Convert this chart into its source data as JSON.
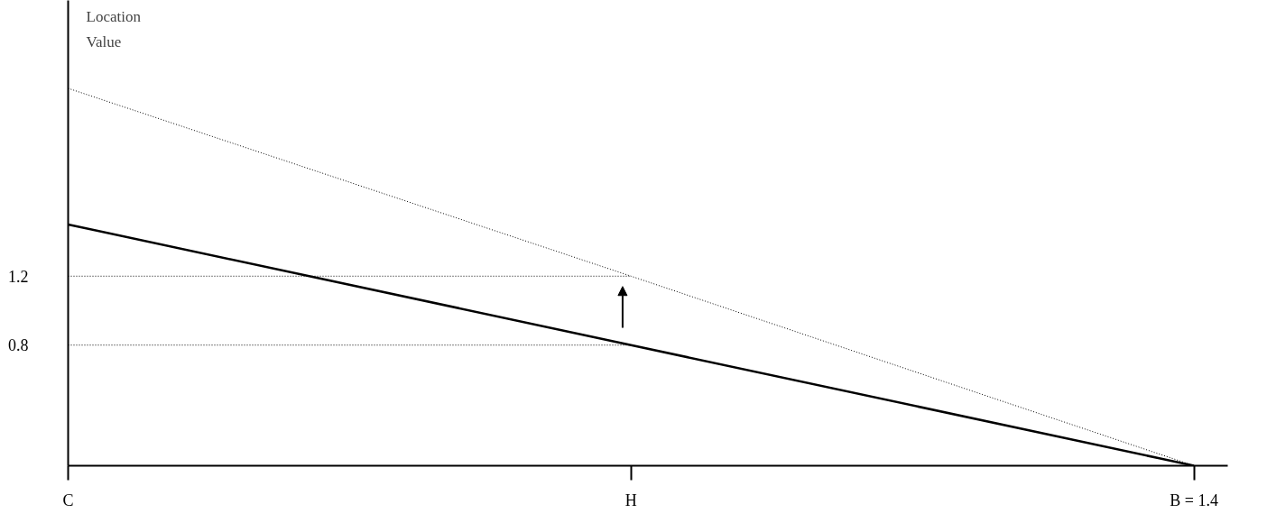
{
  "chart_data": {
    "type": "line",
    "ylabel": "Location Value",
    "categories": [
      "C",
      "H",
      "B = 1.4"
    ],
    "series": [
      {
        "color": "#000000",
        "values": [
          1.5,
          0.8,
          0.1
        ],
        "line_style": "solid"
      },
      {
        "color": "#000000",
        "values": [
          2.29,
          1.2,
          0.1
        ],
        "line_style": "dotted"
      },
      {
        "color": "#000000",
        "values": [
          1.2,
          1.2,
          null
        ],
        "line_style": "dotted"
      },
      {
        "color": "#000000",
        "values": [
          0.8,
          0.8,
          null
        ],
        "line_style": "dotted"
      }
    ],
    "ylim": [
      0.1,
      2.8
    ],
    "yticks": [
      0.8,
      1.2
    ],
    "grid": false,
    "marker": "none"
  }
}
